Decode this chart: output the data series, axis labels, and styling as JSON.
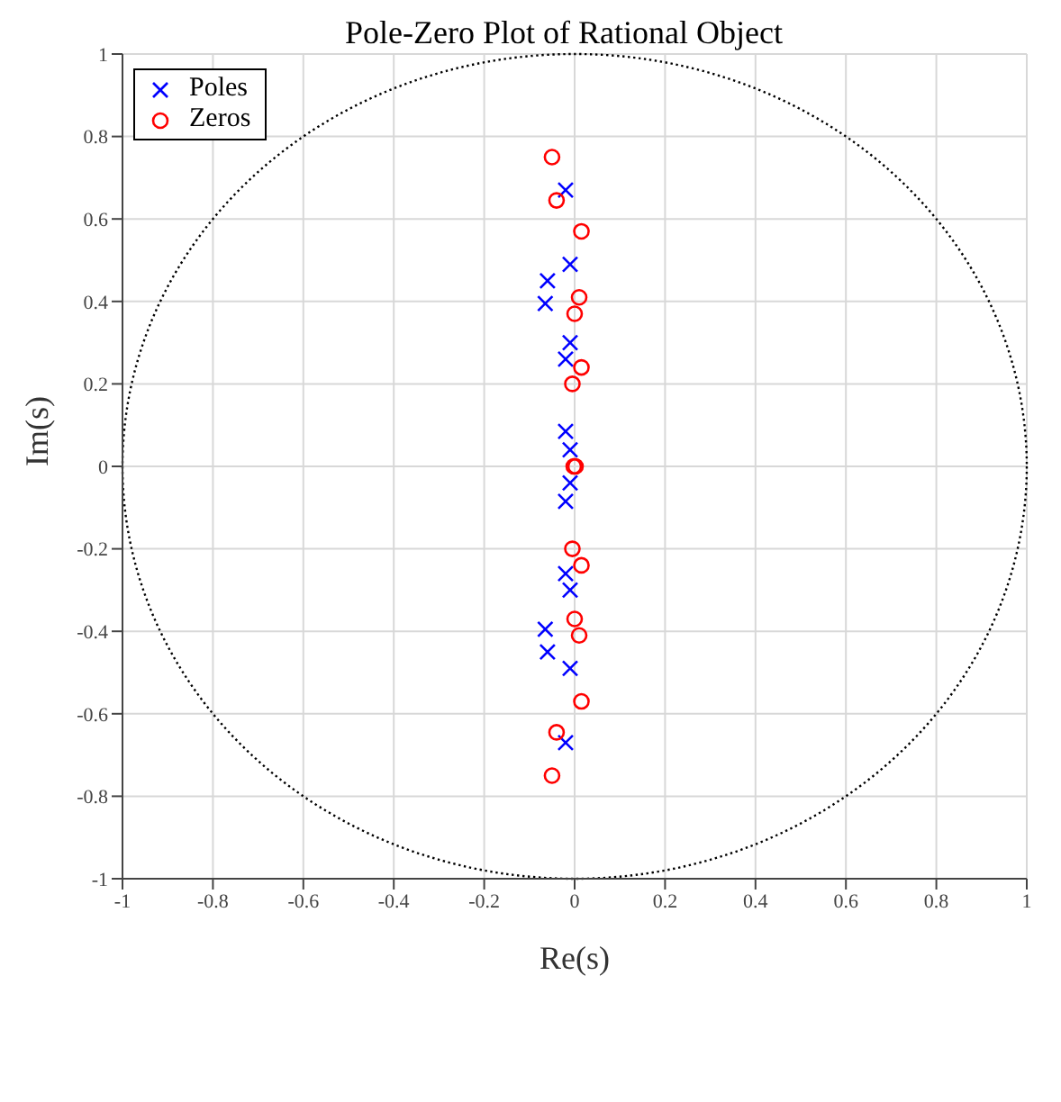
{
  "chart_data": {
    "type": "scatter",
    "title": "Pole-Zero Plot of Rational Object",
    "xlabel": "Re(s)",
    "ylabel": "Im(s)",
    "xlim": [
      -1,
      1
    ],
    "ylim": [
      -1,
      1
    ],
    "xticks": [
      -1,
      -0.8,
      -0.6,
      -0.4,
      -0.2,
      0,
      0.2,
      0.4,
      0.6,
      0.8,
      1
    ],
    "yticks": [
      -1,
      -0.8,
      -0.6,
      -0.4,
      -0.2,
      0,
      0.2,
      0.4,
      0.6,
      0.8,
      1
    ],
    "grid": true,
    "legend": "top left",
    "series": [
      {
        "name": "Poles",
        "color": "#0000ff",
        "marker": "cross",
        "x": [
          -0.02,
          -0.02,
          -0.01,
          -0.01,
          -0.06,
          -0.06,
          -0.065,
          -0.065,
          -0.01,
          -0.01,
          -0.02,
          -0.02,
          -0.02,
          -0.02,
          -0.01,
          -0.01
        ],
        "values": [
          0.67,
          -0.67,
          0.49,
          -0.49,
          0.45,
          -0.45,
          0.395,
          -0.395,
          0.3,
          -0.3,
          0.26,
          -0.26,
          0.085,
          -0.085,
          0.04,
          -0.04
        ]
      },
      {
        "name": "Zeros",
        "color": "#ff0000",
        "marker": "circle",
        "x": [
          -0.05,
          -0.05,
          -0.04,
          -0.04,
          0.015,
          0.015,
          0.01,
          0.01,
          0,
          0,
          0.015,
          0.015,
          -0.005,
          -0.005,
          -0.002,
          0.002
        ],
        "values": [
          0.75,
          -0.75,
          0.645,
          -0.645,
          0.57,
          -0.57,
          0.41,
          -0.41,
          0.37,
          -0.37,
          0.24,
          -0.24,
          0.2,
          -0.2,
          0,
          0
        ]
      }
    ]
  }
}
